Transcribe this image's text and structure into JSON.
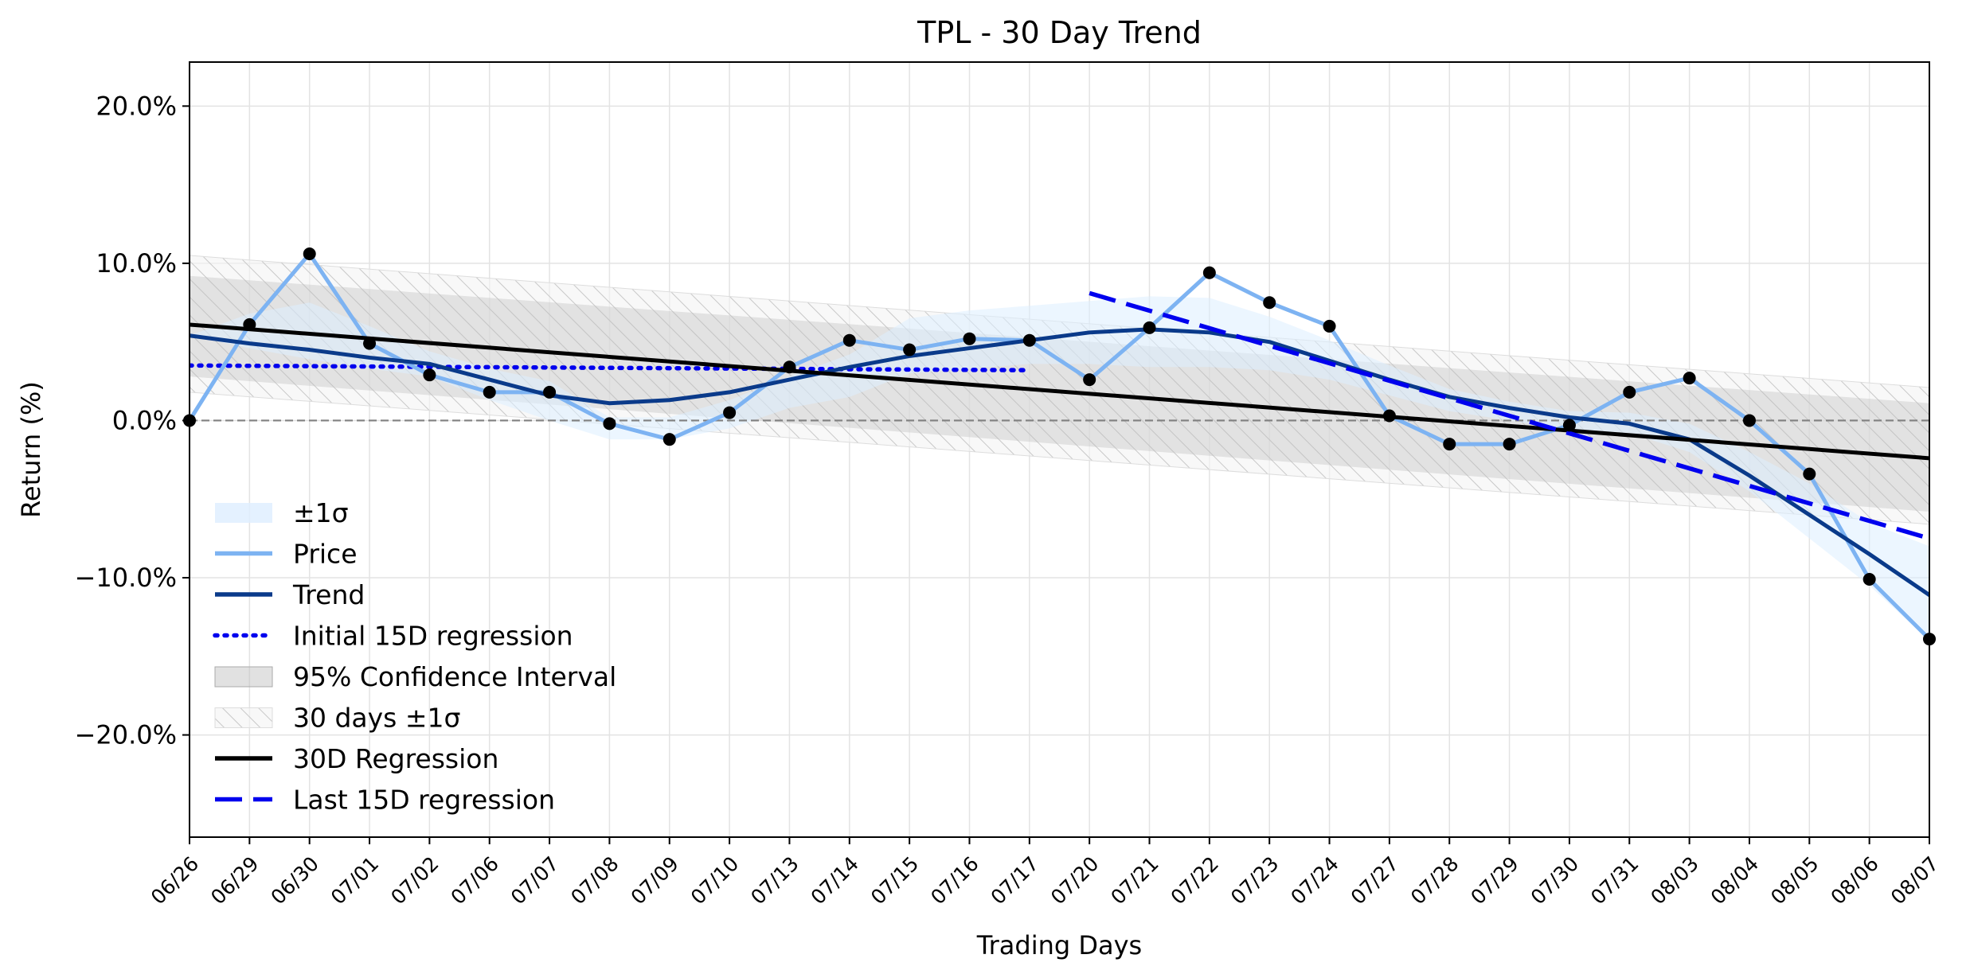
{
  "chart_data": {
    "type": "line",
    "title": "TPL - 30 Day Trend",
    "xlabel": "Trading Days",
    "ylabel": "Return (%)",
    "x": [
      "06/26",
      "06/29",
      "06/30",
      "07/01",
      "07/02",
      "07/06",
      "07/07",
      "07/08",
      "07/09",
      "07/10",
      "07/13",
      "07/14",
      "07/15",
      "07/16",
      "07/17",
      "07/20",
      "07/21",
      "07/22",
      "07/23",
      "07/24",
      "07/27",
      "07/28",
      "07/29",
      "07/30",
      "07/31",
      "08/03",
      "08/04",
      "08/05",
      "08/06",
      "08/07"
    ],
    "ylim": [
      -26.5,
      22.8
    ],
    "yticks": [
      -20,
      -10,
      0,
      10,
      20
    ],
    "ytick_labels": [
      "−20.0%",
      "−10.0%",
      "0.0%",
      "10.0%",
      "20.0%"
    ],
    "grid": true,
    "zero_line": 0,
    "legend_position": "lower-left",
    "series": [
      {
        "name": "±1σ",
        "kind": "band",
        "color": "#ddeeff",
        "upper": [
          5.4,
          6.8,
          7.5,
          6.0,
          4.4,
          3.3,
          2.5,
          0.2,
          0.2,
          1.3,
          2.8,
          4.2,
          6.5,
          7.0,
          7.3,
          7.6,
          7.9,
          7.8,
          6.6,
          5.1,
          3.5,
          2.0,
          1.2,
          0.6,
          0.5,
          -0.2,
          -2.0,
          -4.0,
          -6.5,
          -8.0
        ],
        "lower": [
          5.4,
          4.6,
          3.9,
          3.3,
          2.8,
          1.3,
          0.0,
          -1.2,
          -1.2,
          -0.5,
          0.8,
          1.5,
          3.0,
          3.3,
          3.6,
          3.6,
          3.4,
          3.4,
          3.2,
          2.6,
          1.6,
          0.6,
          0.0,
          -0.6,
          -0.8,
          -2.0,
          -4.5,
          -7.5,
          -10.5,
          -14.0
        ]
      },
      {
        "name": "Price",
        "kind": "line",
        "color": "#7db3f2",
        "values": [
          0.0,
          6.1,
          10.6,
          4.9,
          2.9,
          1.8,
          1.8,
          -0.2,
          -1.2,
          0.5,
          3.4,
          5.1,
          4.5,
          5.2,
          5.1,
          2.6,
          5.9,
          9.4,
          7.5,
          6.0,
          0.3,
          -1.5,
          -1.5,
          -0.3,
          1.8,
          2.7,
          0.0,
          -3.4,
          -10.1,
          -13.9
        ]
      },
      {
        "name": "Trend",
        "kind": "line",
        "color": "#0a3a8a",
        "values": [
          5.4,
          4.9,
          4.5,
          4.0,
          3.6,
          2.6,
          1.6,
          1.1,
          1.3,
          1.8,
          2.6,
          3.4,
          4.1,
          4.6,
          5.1,
          5.6,
          5.8,
          5.6,
          5.0,
          3.8,
          2.6,
          1.5,
          0.8,
          0.2,
          -0.2,
          -1.2,
          -3.5,
          -6.0,
          -8.5,
          -11.1
        ]
      },
      {
        "name": "Initial 15D regression",
        "kind": "regression",
        "style": "dotted",
        "color": "#0000ee",
        "x_range": [
          "06/26",
          "07/17"
        ],
        "y_range": [
          3.5,
          3.2
        ]
      },
      {
        "name": "95% Confidence Interval",
        "kind": "band",
        "color": "#cccccc",
        "upper_ends": [
          9.2,
          1.1
        ],
        "lower_ends": [
          2.8,
          -5.8
        ]
      },
      {
        "name": "30 days ±1σ",
        "kind": "band",
        "color": "#dddddd",
        "hatched": true,
        "upper_ends": [
          10.5,
          2.1
        ],
        "lower_ends": [
          1.8,
          -6.6
        ]
      },
      {
        "name": "30D Regression",
        "kind": "regression",
        "style": "solid",
        "color": "#000000",
        "x_range": [
          "06/26",
          "08/07"
        ],
        "y_range": [
          6.1,
          -2.4
        ]
      },
      {
        "name": "Last 15D regression",
        "kind": "regression",
        "style": "dashed",
        "color": "#0000ee",
        "x_range": [
          "07/20",
          "08/07"
        ],
        "y_range": [
          8.1,
          -7.5
        ]
      }
    ],
    "legend_order": [
      "±1σ",
      "Price",
      "Trend",
      "Initial 15D regression",
      "95% Confidence Interval",
      "30 days ±1σ",
      "30D Regression",
      "Last 15D regression"
    ]
  }
}
